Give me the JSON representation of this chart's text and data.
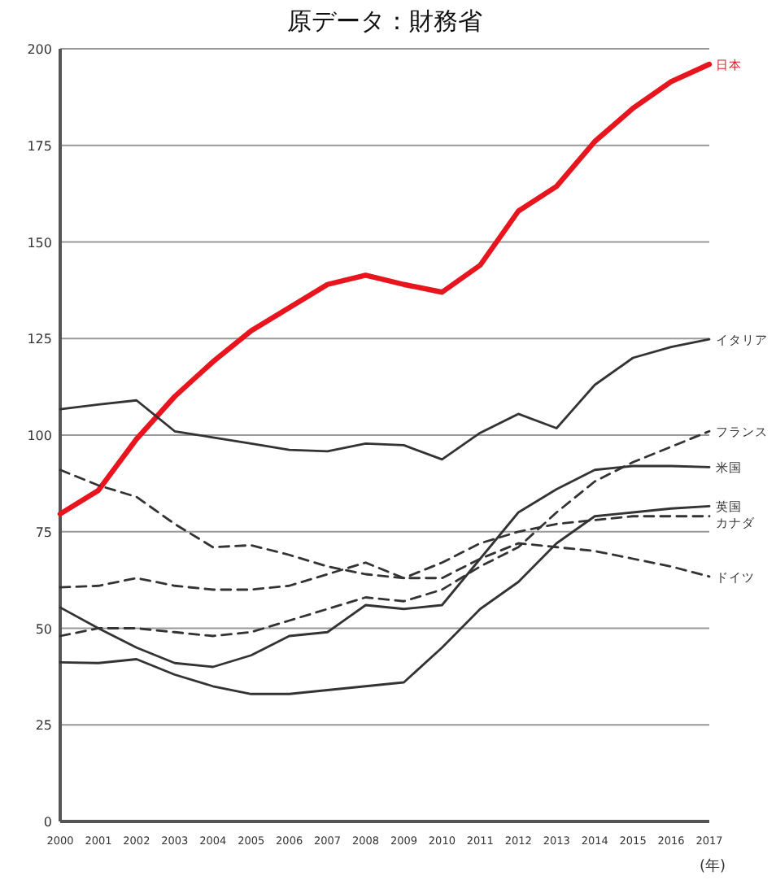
{
  "chart_data": {
    "type": "line",
    "annotations": [
      "原データ：財務省"
    ],
    "xlabel": "(年)",
    "x": [
      2000,
      2001,
      2002,
      2003,
      2004,
      2005,
      2006,
      2007,
      2008,
      2009,
      2010,
      2011,
      2012,
      2013,
      2014,
      2015,
      2016,
      2017
    ],
    "xlim": [
      2000,
      2017
    ],
    "xticks": [
      2000,
      2001,
      2002,
      2003,
      2004,
      2005,
      2006,
      2007,
      2008,
      2009,
      2010,
      2011,
      2012,
      2013,
      2014,
      2015,
      2016,
      2017
    ],
    "ylim": [
      0,
      200
    ],
    "yticks": [
      0,
      25,
      50,
      75,
      100,
      125,
      150,
      175,
      200
    ],
    "grid": "y",
    "legend": false,
    "marker": "none",
    "series": [
      {
        "name": "日本",
        "color": "#e8141e",
        "line_style": "solid",
        "values": [
          79.6,
          85.7,
          99,
          110,
          119,
          127,
          133,
          139,
          141.4,
          139,
          137,
          144,
          158,
          164.4,
          176,
          184.6,
          191.5,
          196
        ]
      },
      {
        "name": "イタリア",
        "color": "#333333",
        "line_style": "solid",
        "values": [
          106.7,
          107.9,
          109,
          101,
          99.4,
          97.8,
          96.2,
          95.8,
          97.8,
          97.4,
          93.7,
          100.6,
          105.5,
          101.8,
          113,
          120,
          122.8,
          124.8
        ]
      },
      {
        "name": "フランス",
        "color": "#333333",
        "line_style": "dashed",
        "values": [
          48,
          50,
          50,
          49,
          48,
          49,
          52,
          55,
          58,
          57,
          60,
          66,
          71,
          80,
          88,
          93,
          97,
          101
        ]
      },
      {
        "name": "米国",
        "color": "#333333",
        "line_style": "solid",
        "values": [
          55.4,
          50,
          45,
          41,
          40,
          43,
          48,
          49,
          56,
          55,
          56,
          68,
          80,
          86,
          91,
          92,
          92,
          91.7
        ]
      },
      {
        "name": "英国",
        "color": "#333333",
        "line_style": "solid",
        "values": [
          41.2,
          41,
          42,
          38,
          35,
          33,
          33,
          34,
          35,
          36,
          45,
          55,
          62,
          72,
          79,
          80,
          81,
          81.6
        ]
      },
      {
        "name": "カナダ",
        "color": "#333333",
        "line_style": "dashed",
        "values": [
          91,
          87,
          84,
          77,
          71,
          71.5,
          69,
          66,
          64,
          63,
          67,
          72,
          75,
          77,
          78,
          79,
          79,
          79
        ]
      },
      {
        "name": "ドイツ",
        "color": "#333333",
        "line_style": "dashed",
        "values": [
          60.6,
          61,
          63,
          61,
          60,
          60,
          61,
          64,
          67,
          63,
          63,
          68,
          72,
          71,
          70,
          68,
          66,
          63.4
        ]
      }
    ]
  }
}
